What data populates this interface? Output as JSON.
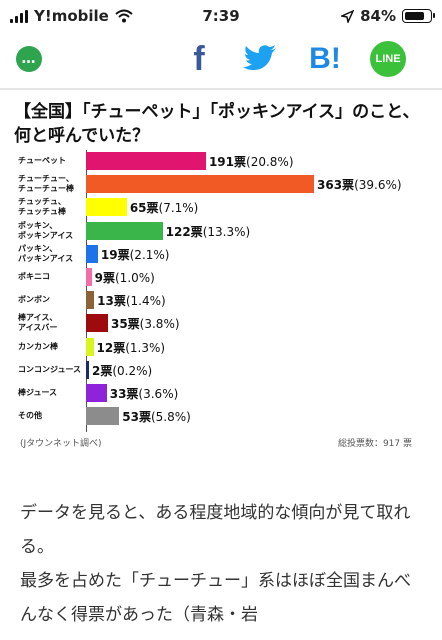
{
  "status_bar": {
    "carrier": "Y!mobile",
    "time": "7:39",
    "battery": "84%",
    "battery_level": 0.84
  },
  "share_bar": {
    "chat_icon_label": "…",
    "facebook_label": "f",
    "hatena_label": "B!",
    "line_label": "LINE"
  },
  "infographic": {
    "title": "【全国】「チューペット」「ポッキンアイス」のこと、何と呼んでいた？",
    "source": "(Jタウンネット調べ)",
    "total": "総投票数：917 票"
  },
  "chart_data": {
    "type": "bar",
    "orientation": "horizontal",
    "categories": [
      "チューペット",
      "チューチュー、チューチュー棒",
      "チュッチュ、チュッチュ棒",
      "ポッキン、ポッキンアイス",
      "パッキン、パッキンアイス",
      "ポキニコ",
      "ボンボン",
      "棒アイス、アイスバー",
      "カンカン棒",
      "コンコンジュース",
      "棒ジュース",
      "その他"
    ],
    "category_lines": [
      [
        "チューペット"
      ],
      [
        "チューチュー、",
        "チューチュー棒"
      ],
      [
        "チュッチュ、",
        "チュッチュ棒"
      ],
      [
        "ポッキン、",
        "ポッキンアイス"
      ],
      [
        "パッキン、",
        "パッキンアイス"
      ],
      [
        "ポキニコ"
      ],
      [
        "ボンボン"
      ],
      [
        "棒アイス、",
        "アイスバー"
      ],
      [
        "カンカン棒"
      ],
      [
        "コンコンジュース"
      ],
      [
        "棒ジュース"
      ],
      [
        "その他"
      ]
    ],
    "values": [
      191,
      363,
      65,
      122,
      19,
      9,
      13,
      35,
      12,
      2,
      33,
      53
    ],
    "value_labels": [
      "191票",
      "363票",
      "65票",
      "122票",
      "19票",
      "9票",
      "13票",
      "35票",
      "12票",
      "2票",
      "33票",
      "53票"
    ],
    "percent_labels": [
      "(20.8%)",
      "(39.6%)",
      "(7.1%)",
      "(13.3%)",
      "(2.1%)",
      "(1.0%)",
      "(1.4%)",
      "(3.8%)",
      "(1.3%)",
      "(0.2%)",
      "(3.6%)",
      "(5.8%)"
    ],
    "colors": [
      "#e0156f",
      "#f15a24",
      "#ffff00",
      "#39b54a",
      "#1e73e8",
      "#f06eaa",
      "#8c6239",
      "#9e0b0f",
      "#d9f51f",
      "#1a2a6c",
      "#8e24d9",
      "#8c8c8c"
    ],
    "xlim": [
      0,
      363
    ]
  },
  "article": {
    "paragraphs": [
      "データを見ると、ある程度地域的な傾向が見て取れる。",
      "最多を占めた「チューチュー」系はほぼ全国まんべんなく得票があった（青森・岩"
    ]
  }
}
